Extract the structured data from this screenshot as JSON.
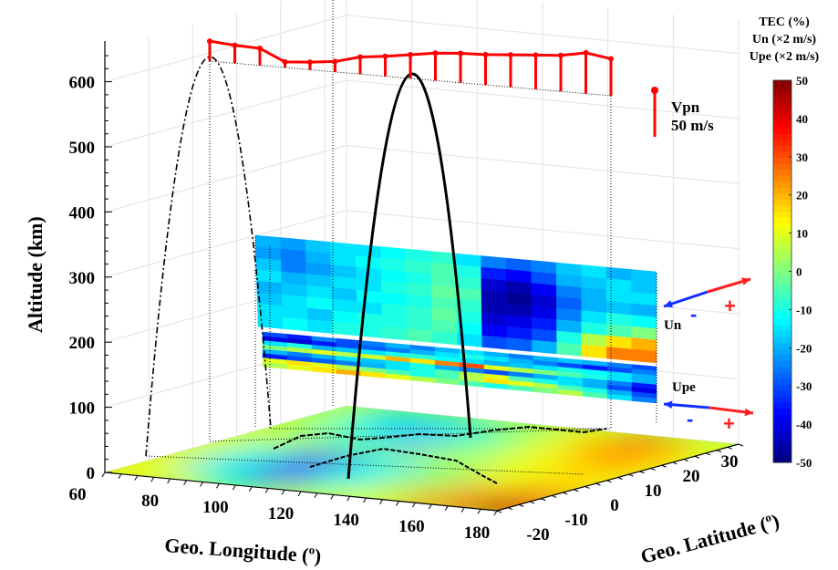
{
  "chart_data": {
    "type": "heatmap",
    "zlabel": "Altitude (km)",
    "xlabel": "Geo. Longitude (",
    "xlabel_sup": "o",
    "xlabel_end": ")",
    "ylabel": "Geo. Latitude (",
    "ylabel_sup": "o",
    "ylabel_end": ")",
    "z_ticks": [
      "0",
      "100",
      "200",
      "300",
      "400",
      "500",
      "600"
    ],
    "x_ticks": [
      "60",
      "80",
      "100",
      "120",
      "140",
      "160",
      "180"
    ],
    "y_ticks": [
      "-20",
      "-10",
      "0",
      "10",
      "20",
      "30"
    ],
    "zlim": [
      0,
      650
    ],
    "xlim": [
      60,
      180
    ],
    "ylim": [
      -20,
      35
    ],
    "colorbar": {
      "title_lines": [
        "TEC (%)",
        "Un (×2 m/s)",
        "Upe (×2 m/s)"
      ],
      "ticks": [
        "50",
        "40",
        "30",
        "20",
        "10",
        "0",
        "-10",
        "-20",
        "-30",
        "-40",
        "-50"
      ],
      "range": [
        -50,
        50
      ],
      "colormap": "jet"
    },
    "vpn": {
      "legend_label": "Vpn",
      "legend_scale": "50 m/s",
      "color": "#ff0000",
      "values_ms": [
        21,
        19,
        18,
        6,
        8,
        11,
        18,
        21,
        25,
        29,
        31,
        32,
        34,
        36,
        38,
        43,
        39
      ]
    },
    "un_panel": {
      "label": "Un",
      "minus": "-",
      "plus": "+",
      "grid": [
        [
          -20,
          -22,
          -18,
          -15,
          -15,
          -12,
          -10,
          -8,
          -15,
          -25,
          -28,
          -25,
          -18,
          -15,
          -20,
          -18
        ],
        [
          -22,
          -25,
          -20,
          -15,
          -12,
          -10,
          -8,
          -5,
          -10,
          -35,
          -38,
          -30,
          -20,
          -18,
          -15,
          -18
        ],
        [
          -18,
          -25,
          -22,
          -18,
          -15,
          -12,
          -10,
          -5,
          -8,
          -42,
          -45,
          -38,
          -25,
          -20,
          -15,
          -15
        ],
        [
          -15,
          -20,
          -18,
          -15,
          -15,
          -10,
          -8,
          -3,
          -5,
          -45,
          -48,
          -42,
          -28,
          -20,
          -18,
          -20
        ],
        [
          -20,
          -18,
          -15,
          -18,
          -12,
          -12,
          -10,
          -5,
          -8,
          -45,
          -45,
          -40,
          -25,
          -15,
          -10,
          -12
        ],
        [
          -18,
          -15,
          -12,
          -15,
          -15,
          -10,
          -8,
          -3,
          -10,
          -42,
          -40,
          -35,
          -20,
          -10,
          -5,
          0
        ],
        [
          -15,
          -15,
          -18,
          -12,
          -10,
          -10,
          -8,
          -5,
          -12,
          -38,
          -35,
          -30,
          -10,
          5,
          15,
          20
        ],
        [
          -15,
          -12,
          -15,
          -10,
          -10,
          -8,
          -5,
          -8,
          -15,
          -30,
          -28,
          -20,
          -5,
          15,
          25,
          25
        ]
      ]
    },
    "upe_panel": {
      "label": "Upe",
      "minus": "-",
      "plus": "+",
      "grid": [
        [
          -30,
          -35,
          -25,
          -30,
          -25,
          -20,
          -25,
          -20,
          -15,
          -20,
          -25,
          -20,
          -18,
          -20,
          -25,
          -30
        ],
        [
          -40,
          -42,
          -35,
          -30,
          -28,
          -25,
          -20,
          -15,
          -10,
          -15,
          -20,
          -25,
          -30,
          -35,
          -30,
          -25
        ],
        [
          -15,
          -10,
          -20,
          -18,
          -15,
          -10,
          -8,
          -12,
          -15,
          -20,
          -18,
          -15,
          -10,
          -12,
          -15,
          -20
        ],
        [
          0,
          5,
          10,
          5,
          8,
          20,
          15,
          25,
          30,
          10,
          5,
          0,
          -5,
          -10,
          -15,
          -20
        ],
        [
          -20,
          -25,
          -20,
          -15,
          -18,
          -15,
          -10,
          -20,
          -25,
          -30,
          -25,
          -20,
          -15,
          -20,
          -25,
          -35
        ],
        [
          -35,
          -30,
          -28,
          -25,
          -20,
          -15,
          -10,
          -5,
          5,
          10,
          -5,
          -10,
          -15,
          -20,
          -30,
          -40
        ],
        [
          10,
          15,
          10,
          5,
          0,
          -5,
          -10,
          -5,
          5,
          15,
          10,
          5,
          -5,
          -10,
          -20,
          -30
        ],
        [
          5,
          10,
          15,
          20,
          15,
          10,
          5,
          0,
          -5,
          -10,
          -5,
          0,
          5,
          -5,
          -15,
          -25
        ]
      ]
    },
    "tec_map": {
      "lons": [
        60,
        80,
        100,
        120,
        140,
        160,
        180
      ],
      "lats": [
        -20,
        -10,
        0,
        10,
        20,
        30
      ],
      "grid": [
        [
          15,
          10,
          -5,
          5,
          10,
          25,
          45
        ],
        [
          10,
          -15,
          -35,
          -10,
          5,
          20,
          35
        ],
        [
          10,
          -10,
          -30,
          -15,
          0,
          10,
          15
        ],
        [
          10,
          5,
          0,
          5,
          10,
          15,
          15
        ],
        [
          5,
          -10,
          -20,
          -5,
          10,
          25,
          15
        ],
        [
          5,
          -15,
          -15,
          0,
          15,
          25,
          10
        ]
      ]
    },
    "arrow_colors": {
      "negative": "#1030ff",
      "positive": "#ff2020"
    }
  }
}
